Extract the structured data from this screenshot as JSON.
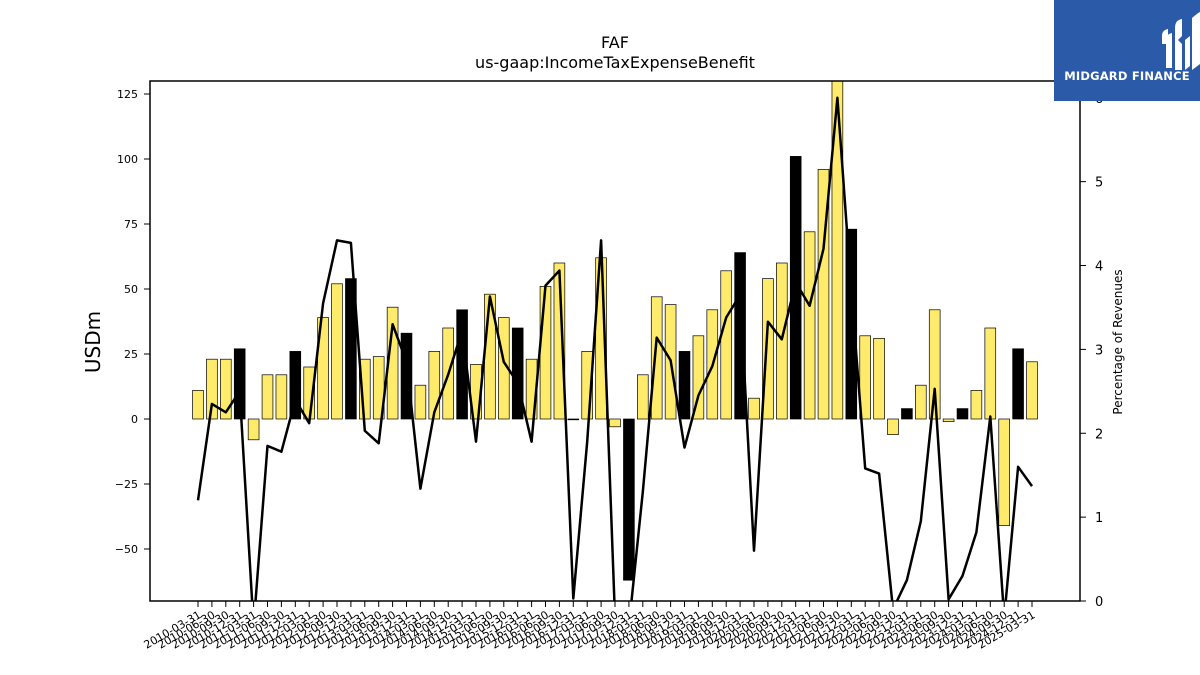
{
  "chart_data": {
    "type": "bar",
    "title": "FAF",
    "subtitle": "us-gaap:IncomeTaxExpenseBenefit",
    "ylabel": "USDm",
    "y2label": "Percentage of Revenues",
    "ylim": [
      -70,
      130
    ],
    "y2lim": [
      0,
      6.2
    ],
    "yticks": [
      125,
      100,
      75,
      50,
      25,
      0,
      -25,
      -50
    ],
    "ytick_labels": [
      "125",
      "100",
      "75",
      "50",
      "25",
      "0",
      "−25",
      "−50"
    ],
    "y2ticks": [
      0,
      1,
      2,
      3,
      4,
      5,
      6
    ],
    "y2tick_labels": [
      "0",
      "1",
      "2",
      "3",
      "4",
      "5",
      "6"
    ],
    "categories": [
      "2010-03-31",
      "2010-06-30",
      "2010-09-30",
      "2010-12-31",
      "2011-03-31",
      "2011-06-30",
      "2011-09-30",
      "2011-12-31",
      "2012-03-31",
      "2012-06-30",
      "2012-09-30",
      "2012-12-31",
      "2013-03-31",
      "2013-06-30",
      "2013-09-30",
      "2013-12-31",
      "2014-03-31",
      "2014-06-30",
      "2014-09-30",
      "2014-12-31",
      "2015-03-31",
      "2015-06-30",
      "2015-09-30",
      "2015-12-31",
      "2016-03-31",
      "2016-06-30",
      "2016-09-30",
      "2016-12-31",
      "2017-03-31",
      "2017-06-30",
      "2017-09-30",
      "2017-12-31",
      "2018-03-31",
      "2018-06-30",
      "2018-09-30",
      "2018-12-31",
      "2019-03-31",
      "2019-06-30",
      "2019-09-30",
      "2019-12-31",
      "2020-03-31",
      "2020-06-30",
      "2020-09-30",
      "2020-12-31",
      "2021-03-31",
      "2021-06-30",
      "2021-09-30",
      "2021-12-31",
      "2022-03-31",
      "2022-06-30",
      "2022-09-30",
      "2022-12-31",
      "2023-03-31",
      "2023-06-30",
      "2023-09-30",
      "2023-12-31",
      "2024-03-31",
      "2024-06-30",
      "2024-09-30",
      "2024-12-31",
      "2025-03-31"
    ],
    "series": [
      {
        "kind": "bar",
        "values": [
          11,
          23,
          23,
          27,
          -8,
          17,
          17,
          26,
          20,
          39,
          52,
          54,
          23,
          24,
          43,
          33,
          13,
          26,
          35,
          42,
          21,
          48,
          39,
          35,
          23,
          51,
          60,
          0,
          26,
          62,
          -3,
          -62,
          17,
          47,
          44,
          26,
          32,
          42,
          57,
          64,
          8,
          54,
          60,
          101,
          72,
          96,
          130,
          73,
          32,
          31,
          -6,
          4,
          13,
          42,
          -1,
          4,
          11,
          35,
          -41,
          27,
          22
        ],
        "highlight": [
          0,
          0,
          0,
          1,
          0,
          0,
          0,
          1,
          0,
          0,
          0,
          1,
          0,
          0,
          0,
          1,
          0,
          0,
          0,
          1,
          0,
          0,
          0,
          1,
          0,
          0,
          0,
          1,
          0,
          0,
          0,
          1,
          0,
          0,
          0,
          1,
          0,
          0,
          0,
          1,
          0,
          0,
          0,
          1,
          0,
          0,
          0,
          1,
          0,
          0,
          0,
          1,
          0,
          0,
          0,
          1,
          0,
          0,
          0,
          1,
          0
        ]
      },
      {
        "kind": "line",
        "axis": "right",
        "values": [
          1.2,
          2.35,
          2.25,
          2.5,
          -0.3,
          1.85,
          1.78,
          2.4,
          2.12,
          3.55,
          4.3,
          4.27,
          2.03,
          1.88,
          3.3,
          2.85,
          1.34,
          2.25,
          2.7,
          3.22,
          1.9,
          3.63,
          2.85,
          2.6,
          1.9,
          3.76,
          3.94,
          0.03,
          1.9,
          4.3,
          -0.2,
          -0.3,
          1.3,
          3.14,
          2.87,
          1.83,
          2.45,
          2.8,
          3.38,
          3.65,
          0.6,
          3.33,
          3.12,
          3.8,
          3.52,
          4.2,
          6.0,
          3.7,
          1.58,
          1.52,
          -0.1,
          0.25,
          0.95,
          2.53,
          0.02,
          0.3,
          0.82,
          2.2,
          -0.2,
          1.6,
          1.37
        ]
      }
    ],
    "colors": {
      "bar": "#ffeb6b",
      "highlight_bar": "#000000",
      "line": "#000000",
      "bar_edge": "#000000"
    }
  },
  "logo": {
    "text": "MIDGARD FINANCE",
    "bg": "#2b5ba8"
  }
}
